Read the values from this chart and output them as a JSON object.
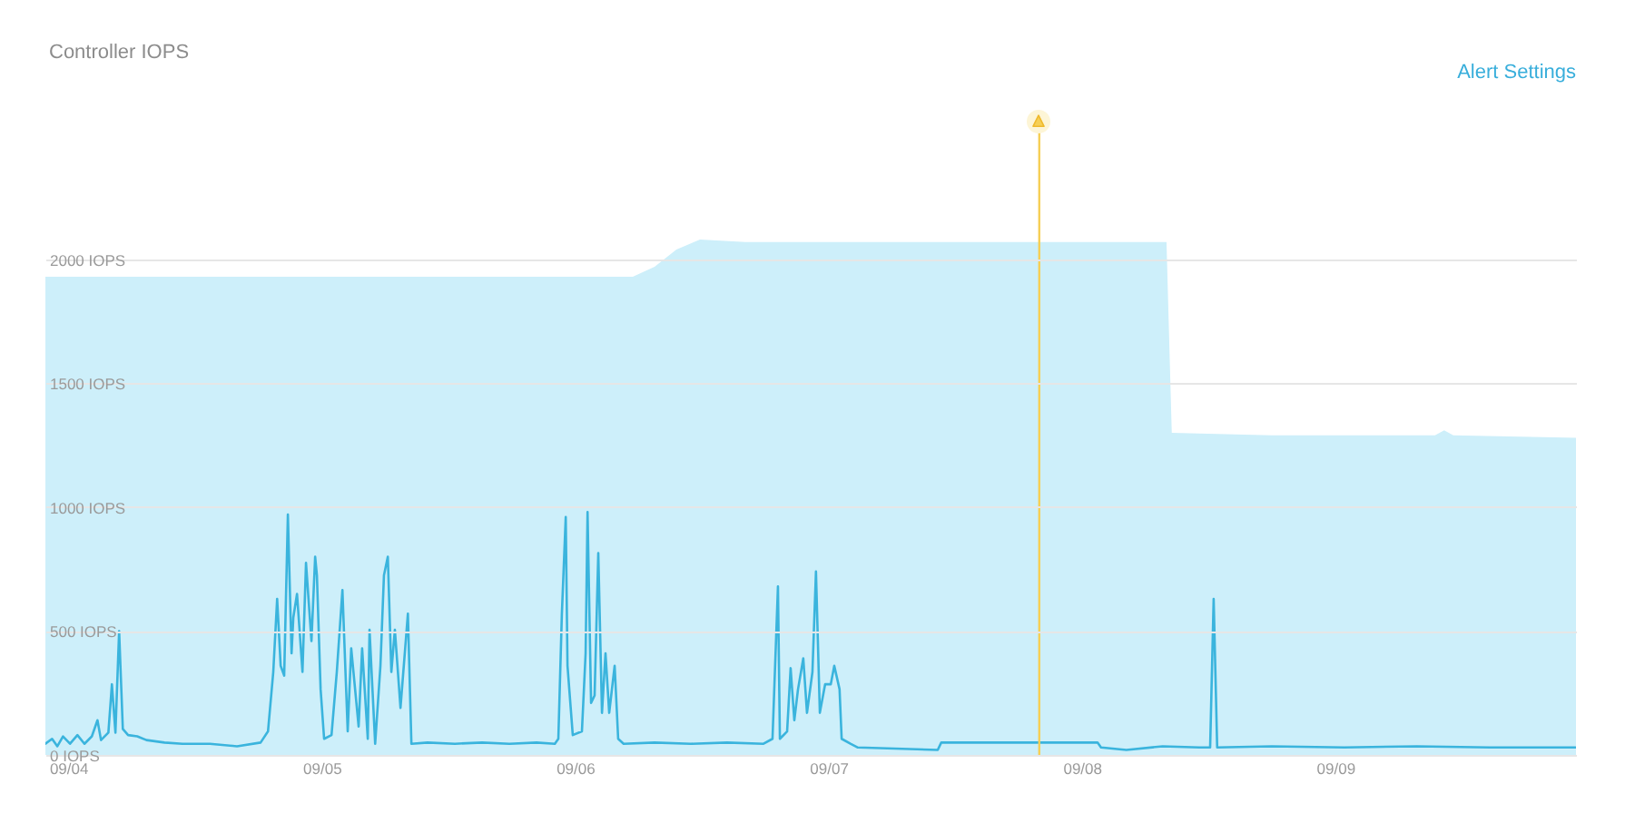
{
  "chart_data": {
    "type": "line",
    "title": "Controller IOPS",
    "annotations": [
      "Alert Settings"
    ],
    "xlim": [
      "--09-03T21:50",
      "--09-09T22:48"
    ],
    "xticks": [
      {
        "value": "--09-04",
        "label": "09/04"
      },
      {
        "value": "--09-05",
        "label": "09/05"
      },
      {
        "value": "--09-06",
        "label": "09/06"
      },
      {
        "value": "--09-07",
        "label": "09/07"
      },
      {
        "value": "--09-08",
        "label": "09/08"
      },
      {
        "value": "--09-09",
        "label": "09/09"
      }
    ],
    "ylim": [
      0,
      2600
    ],
    "yticks": [
      {
        "value": 0,
        "label": "0 IOPS"
      },
      {
        "value": 500,
        "label": "500 IOPS"
      },
      {
        "value": 1000,
        "label": "1000 IOPS"
      },
      {
        "value": 1500,
        "label": "1500 IOPS"
      },
      {
        "value": 2000,
        "label": "2000 IOPS"
      }
    ],
    "grid": "y",
    "series": [
      {
        "type": "area",
        "color": "#cdeffa",
        "x": [
          "--09-03T21:50",
          "--09-06T05:28",
          "--09-06T07:32",
          "--09-06T09:36",
          "--09-06T11:50",
          "--09-06T16:08",
          "--09-08T08:01",
          "--09-08T08:31",
          "--09-08T17:59",
          "--09-09T09:27",
          "--09-09T10:19",
          "--09-09T11:11",
          "--09-09T22:48"
        ],
        "values": [
          1930,
          1930,
          1970,
          2040,
          2080,
          2070,
          2070,
          1300,
          1290,
          1290,
          1310,
          1290,
          1280
        ]
      },
      {
        "type": "line",
        "color": "#3ab4dd",
        "x": [
          "--09-03T21:50",
          "--09-03T22:28",
          "--09-03T22:58",
          "--09-03T23:30",
          "--09-04T00:10",
          "--09-04T00:52",
          "--09-04T01:32",
          "--09-04T02:14",
          "--09-04T02:46",
          "--09-04T03:06",
          "--09-04T03:48",
          "--09-04T04:08",
          "--09-04T04:28",
          "--09-04T04:49",
          "--09-04T05:10",
          "--09-04T05:40",
          "--09-04T06:32",
          "--09-04T07:24",
          "--09-04T09:07",
          "--09-04T10:49",
          "--09-04T13:25",
          "--09-04T15:59",
          "--09-04T18:13",
          "--09-04T18:55",
          "--09-04T19:25",
          "--09-04T19:47",
          "--09-04T20:07",
          "--09-04T20:27",
          "--09-04T20:48",
          "--09-04T21:09",
          "--09-04T21:19",
          "--09-04T21:40",
          "--09-04T22:11",
          "--09-04T22:31",
          "--09-04T23:02",
          "--09-04T23:23",
          "--09-04T23:33",
          "--09-04T23:54",
          "--09-05T00:14",
          "--09-05T00:56",
          "--09-05T01:26",
          "--09-05T01:58",
          "--09-05T02:28",
          "--09-05T02:48",
          "--09-05T03:30",
          "--09-05T03:50",
          "--09-05T04:22",
          "--09-05T04:32",
          "--09-05T05:04",
          "--09-05T05:34",
          "--09-05T05:54",
          "--09-05T06:16",
          "--09-05T06:36",
          "--09-05T06:56",
          "--09-05T07:28",
          "--09-05T08:10",
          "--09-05T08:30",
          "--09-05T10:02",
          "--09-05T12:37",
          "--09-05T15:12",
          "--09-05T17:47",
          "--09-05T20:21",
          "--09-05T22:05",
          "--09-05T22:25",
          "--09-05T22:45",
          "--09-05T23:07",
          "--09-05T23:17",
          "--09-05T23:47",
          "--09-06T00:39",
          "--09-06T01:00",
          "--09-06T01:11",
          "--09-06T01:31",
          "--09-06T01:51",
          "--09-06T02:12",
          "--09-06T02:33",
          "--09-06T02:53",
          "--09-06T03:14",
          "--09-06T03:45",
          "--09-06T04:05",
          "--09-06T04:36",
          "--09-06T07:32",
          "--09-06T10:58",
          "--09-06T14:24",
          "--09-06T17:51",
          "--09-06T18:42",
          "--09-06T19:13",
          "--09-06T19:24",
          "--09-06T20:05",
          "--09-06T20:25",
          "--09-06T20:46",
          "--09-06T21:07",
          "--09-06T21:37",
          "--09-06T21:58",
          "--09-06T22:29",
          "--09-06T22:49",
          "--09-06T23:11",
          "--09-06T23:41",
          "--09-07T00:13",
          "--09-07T00:33",
          "--09-07T01:03",
          "--09-07T01:15",
          "--09-07T02:05",
          "--09-07T02:47",
          "--09-07T10:21",
          "--09-07T10:41",
          "--09-08T01:29",
          "--09-08T01:49",
          "--09-08T04:13",
          "--09-08T07:39",
          "--09-08T11:07",
          "--09-08T12:09",
          "--09-08T12:29",
          "--09-08T12:49",
          "--09-08T17:59",
          "--09-09T00:52",
          "--09-09T07:44",
          "--09-09T14:37",
          "--09-09T22:48"
        ],
        "values": [
          45,
          65,
          35,
          75,
          45,
          80,
          45,
          75,
          140,
          60,
          90,
          285,
          90,
          500,
          105,
          80,
          75,
          60,
          50,
          45,
          45,
          35,
          50,
          95,
          335,
          630,
          360,
          320,
          970,
          410,
          555,
          650,
          335,
          775,
          460,
          800,
          725,
          265,
          65,
          80,
          335,
          665,
          95,
          430,
          115,
          430,
          65,
          505,
          45,
          360,
          725,
          800,
          335,
          505,
          190,
          570,
          45,
          50,
          45,
          50,
          45,
          50,
          45,
          65,
          570,
          960,
          360,
          80,
          95,
          410,
          980,
          210,
          240,
          815,
          170,
          410,
          170,
          360,
          65,
          45,
          50,
          45,
          50,
          45,
          65,
          680,
          65,
          95,
          350,
          140,
          265,
          390,
          170,
          335,
          740,
          170,
          285,
          285,
          360,
          265,
          65,
          45,
          30,
          20,
          50,
          50,
          30,
          20,
          35,
          30,
          30,
          630,
          30,
          35,
          30,
          35,
          30,
          30
        ]
      }
    ],
    "ref_lines": [
      {
        "axis": "x",
        "value": "--09-07T19:58",
        "color": "#f6cf55"
      }
    ]
  }
}
